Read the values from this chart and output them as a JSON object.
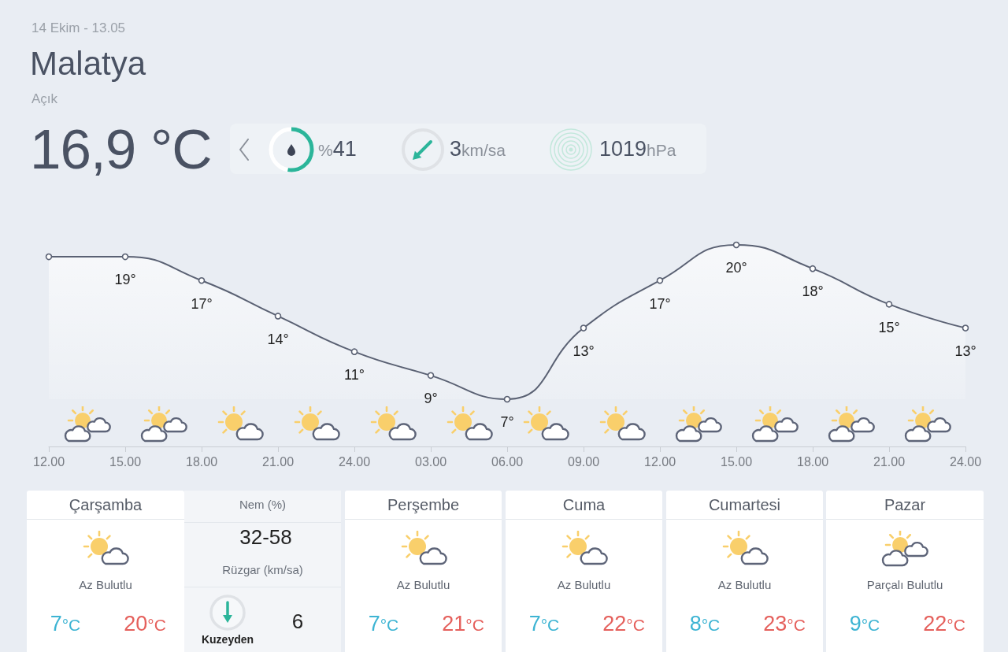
{
  "chart_data": [
    {
      "type": "other",
      "title": "Malatya",
      "subtitle": "Açık",
      "annotations": [
        "14 Ekim - 13.05",
        "16,9 °C",
        "%41",
        "3km/sa",
        "1019hPa"
      ]
    },
    {
      "type": "area",
      "categories": [
        "12.00",
        "15.00",
        "18.00",
        "21.00",
        "24.00",
        "03.00",
        "06.00",
        "09.00",
        "12.00",
        "15.00",
        "18.00",
        "21.00",
        "24.00"
      ],
      "values": [
        19,
        19,
        17,
        14,
        11,
        9,
        7,
        13,
        17,
        20,
        18,
        15,
        13
      ],
      "value_labels": [
        null,
        "19°",
        "17°",
        "14°",
        "11°",
        "9°",
        "7°",
        "13°",
        "17°",
        "20°",
        "18°",
        "15°",
        "13°"
      ],
      "color": "#5a6173",
      "marker": "circle"
    },
    {
      "type": "other",
      "title": "Çarşamba",
      "annotations": [
        "Az Bulutlu",
        "7°C",
        "20°C"
      ]
    },
    {
      "type": "other",
      "title": "Nem (%)",
      "annotations": [
        "32-58",
        "Rüzgar (km/sa)",
        "Kuzeyden",
        "6"
      ]
    },
    {
      "type": "other",
      "title": "Perşembe",
      "annotations": [
        "Az Bulutlu",
        "7°C",
        "21°C"
      ]
    },
    {
      "type": "other",
      "title": "Cuma",
      "annotations": [
        "Az Bulutlu",
        "7°C",
        "22°C"
      ]
    },
    {
      "type": "other",
      "title": "Cumartesi",
      "annotations": [
        "Az Bulutlu",
        "8°C",
        "23°C"
      ]
    },
    {
      "type": "other",
      "title": "Pazar",
      "annotations": [
        "Parçalı Bulutlu",
        "9°C",
        "22°C"
      ]
    }
  ]
}
